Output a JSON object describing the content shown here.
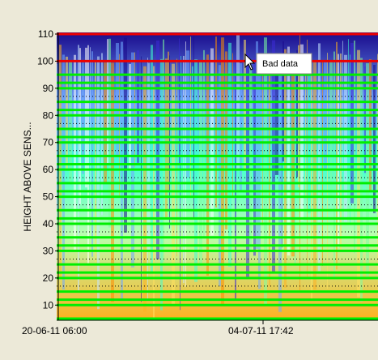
{
  "chart_data": {
    "type": "heatmap",
    "ylabel": "HEIGHT ABOVE SENS...",
    "y_ticks": [
      10,
      20,
      30,
      40,
      50,
      60,
      70,
      80,
      90,
      100,
      110
    ],
    "ylim": [
      5,
      110
    ],
    "x_tick_labels": [
      "20-06-11 06:00",
      "04-07-11 17:42"
    ],
    "green_line_heights": [
      5,
      10,
      12,
      15,
      20,
      22,
      25,
      30,
      32,
      35,
      40,
      42,
      45,
      50,
      52,
      55,
      60,
      62,
      65,
      70,
      72,
      75,
      80,
      82,
      85,
      90,
      92,
      95
    ],
    "red_line_heights": [
      100,
      110
    ],
    "dotted_line_heights": [
      17,
      27,
      37,
      47,
      57,
      67,
      77,
      87
    ],
    "tooltip": {
      "text": "Bad data"
    },
    "colors": {
      "low": "#ffa500",
      "mid": "#00ffcc",
      "high": "#0000cc",
      "bad_data_line": "#ee0000",
      "level_line": "#00ee00",
      "background": "#ece9d8"
    }
  }
}
